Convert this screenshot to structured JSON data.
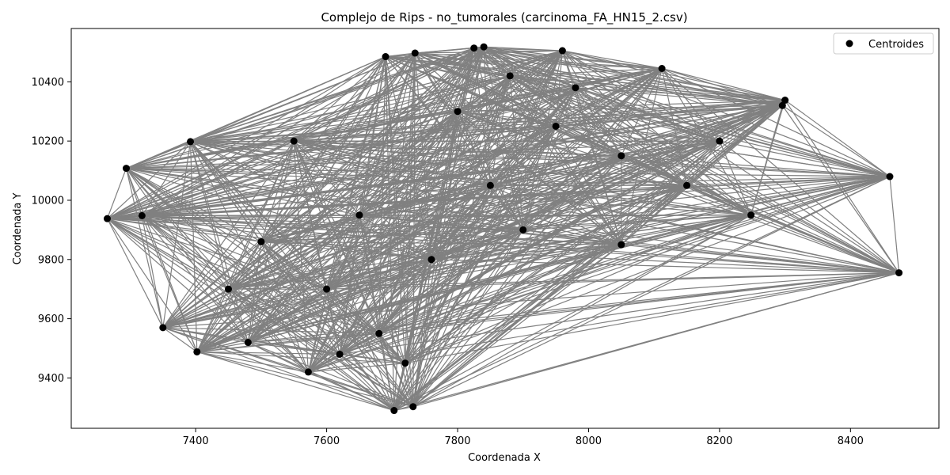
{
  "chart_data": {
    "type": "scatter",
    "title": "Complejo de Rips - no_tumorales (carcinoma_FA_HN15_2.csv)",
    "xlabel": "Coordenada X",
    "ylabel": "Coordenada Y",
    "xlim": [
      7210,
      8535
    ],
    "ylim": [
      9230,
      10580
    ],
    "xticks": [
      7400,
      7600,
      7800,
      8000,
      8200,
      8400
    ],
    "yticks": [
      9400,
      9600,
      9800,
      10000,
      10200,
      10400
    ],
    "xtick_labels": [
      "7400",
      "7600",
      "7800",
      "8000",
      "8200",
      "8400"
    ],
    "ytick_labels": [
      "9400",
      "9600",
      "9800",
      "10000",
      "10200",
      "10400"
    ],
    "grid": false,
    "legend": {
      "position": "top-right",
      "entries": [
        "Centroides"
      ]
    },
    "point_color": "#000000",
    "edge_color": "#808080",
    "series": [
      {
        "name": "Centroides",
        "points": [
          [
            7265,
            9938
          ],
          [
            7294,
            10108
          ],
          [
            7392,
            10198
          ],
          [
            7350,
            9570
          ],
          [
            7402,
            9488
          ],
          [
            7572,
            9420
          ],
          [
            7690,
            10485
          ],
          [
            7735,
            10497
          ],
          [
            7825,
            10514
          ],
          [
            7840,
            10518
          ],
          [
            7960,
            10505
          ],
          [
            8112,
            10445
          ],
          [
            8300,
            10338
          ],
          [
            8296,
            10320
          ],
          [
            8460,
            10080
          ],
          [
            8474,
            9755
          ],
          [
            7703,
            9290
          ],
          [
            7732,
            9303
          ],
          [
            8248,
            9950
          ],
          [
            7318,
            9948
          ],
          [
            7500,
            9860
          ],
          [
            7600,
            9700
          ],
          [
            7680,
            9550
          ],
          [
            7760,
            9800
          ],
          [
            7850,
            10050
          ],
          [
            7950,
            10250
          ],
          [
            8050,
            10150
          ],
          [
            8150,
            10050
          ],
          [
            7900,
            9900
          ],
          [
            7800,
            10300
          ],
          [
            7550,
            10200
          ],
          [
            7450,
            9700
          ],
          [
            7650,
            9950
          ],
          [
            8050,
            9850
          ],
          [
            8200,
            10200
          ],
          [
            7720,
            9450
          ],
          [
            7620,
            9480
          ],
          [
            7480,
            9520
          ],
          [
            7980,
            10380
          ],
          [
            7880,
            10420
          ]
        ]
      }
    ]
  }
}
